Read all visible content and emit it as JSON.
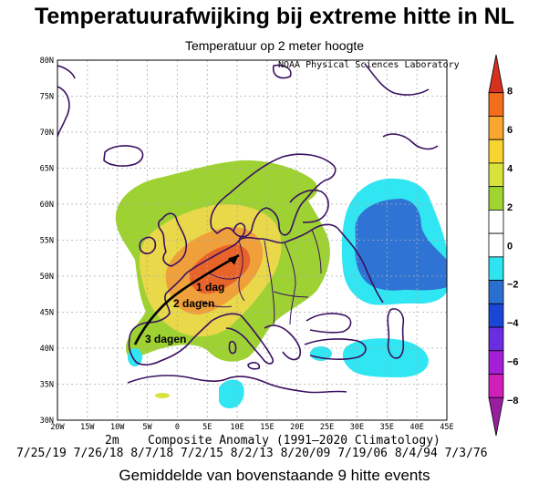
{
  "title": "Temperatuurafwijking bij extreme hitte in NL",
  "subtitle": "Temperatuur op 2 meter hoogte",
  "credit": "NOAA Physical Sciences Laboratory",
  "composite_label": "2m    Composite Anomaly (1991–2020 Climatology)",
  "dates_label": "7/25/19 7/26/18 8/7/18 7/2/15 8/2/13 8/20/09 7/19/06 8/4/94 7/3/76",
  "footnote": "Gemiddelde van bovenstaande 9 hitte events",
  "lat_labels": [
    "80N",
    "75N",
    "70N",
    "65N",
    "60N",
    "55N",
    "50N",
    "45N",
    "40N",
    "35N",
    "30N"
  ],
  "lon_labels": [
    "20W",
    "15W",
    "10W",
    "5W",
    "0",
    "5E",
    "10E",
    "15E",
    "20E",
    "25E",
    "30E",
    "35E",
    "40E",
    "45E"
  ],
  "colorbar": {
    "labels": [
      "8",
      "6",
      "4",
      "2",
      "0",
      "−2",
      "−4",
      "−6",
      "−8"
    ],
    "colors": [
      "#d7301f",
      "#f46d1a",
      "#f7a630",
      "#f9d531",
      "#d8e33c",
      "#9fd431",
      "#ffffff",
      "#ffffff",
      "#2de4f0",
      "#2a6fd0",
      "#1a46d6",
      "#6a2de0",
      "#a51fd8",
      "#d21fb8",
      "#9a1ea0"
    ]
  },
  "annotations": {
    "day1": "1 dag",
    "day2": "2 dagen",
    "day3": "3 dagen"
  },
  "colors": {
    "green": "#9ed232",
    "yellow": "#e8d84a",
    "orange": "#f0a03a",
    "red": "#e8632a",
    "cyan": "#30e6f2",
    "blue": "#2f74d4",
    "coast": "#3a1060"
  }
}
